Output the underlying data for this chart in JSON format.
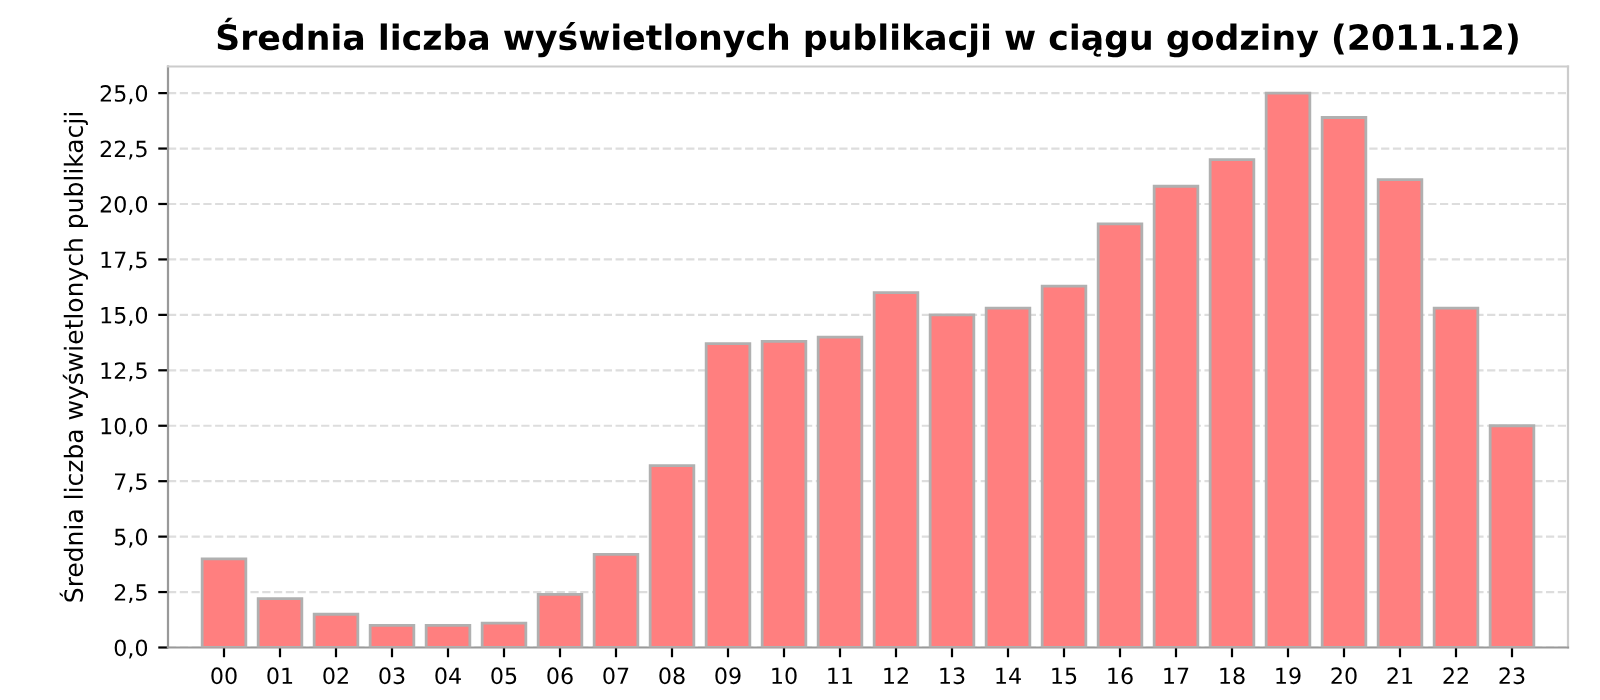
{
  "chart_data": {
    "type": "bar",
    "title": "Średnia liczba wyświetlonych publikacji w ciągu godziny (2011.12)",
    "ylabel": "Średnia liczba wyświetlonych publikacji",
    "categories": [
      "00",
      "01",
      "02",
      "03",
      "04",
      "05",
      "06",
      "07",
      "08",
      "09",
      "10",
      "11",
      "12",
      "13",
      "14",
      "15",
      "16",
      "17",
      "18",
      "19",
      "20",
      "21",
      "22",
      "23"
    ],
    "values": [
      4.0,
      2.2,
      1.5,
      1.0,
      1.0,
      1.1,
      2.4,
      4.2,
      8.2,
      13.7,
      13.8,
      14.0,
      16.0,
      15.0,
      15.3,
      16.3,
      19.1,
      20.8,
      22.0,
      25.0,
      23.9,
      21.1,
      15.3,
      10.0
    ],
    "color": "#ff7f7f",
    "ylim": [
      0,
      26.2
    ],
    "yticks": [
      {
        "value": 0,
        "label": "0,0"
      },
      {
        "value": 2.5,
        "label": "2,5"
      },
      {
        "value": 5,
        "label": "5,0"
      },
      {
        "value": 7.5,
        "label": "7,5"
      },
      {
        "value": 10,
        "label": "10,0"
      },
      {
        "value": 12.5,
        "label": "12,5"
      },
      {
        "value": 15,
        "label": "15,0"
      },
      {
        "value": 17.5,
        "label": "17,5"
      },
      {
        "value": 20,
        "label": "20,0"
      },
      {
        "value": 22.5,
        "label": "22,5"
      },
      {
        "value": 25,
        "label": "25,0"
      }
    ],
    "grid": "y"
  }
}
